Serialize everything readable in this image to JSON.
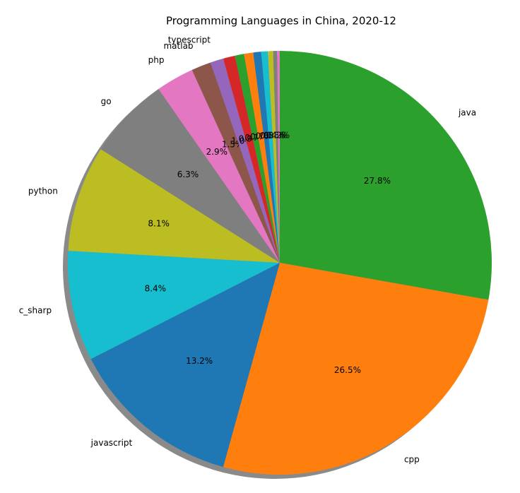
{
  "chart_data": {
    "type": "pie",
    "title": "Programming Languages in China, 2020-12",
    "categories": [
      "java",
      "cpp",
      "javascript",
      "c_sharp",
      "python",
      "go",
      "php",
      "matlab",
      "typescript",
      null,
      null,
      null,
      null,
      null,
      null,
      null,
      null
    ],
    "values": [
      27.8,
      26.5,
      13.2,
      8.4,
      8.1,
      6.3,
      2.9,
      1.5,
      1.0,
      0.9,
      0.7,
      0.7,
      0.6,
      0.5,
      0.4,
      0.3,
      0.2
    ],
    "value_labels": [
      "27.8%",
      "26.5%",
      "13.2%",
      "8.4%",
      "8.1%",
      "6.3%",
      "2.9%",
      "1.5%",
      "1.0%",
      "0.9%",
      "0.7%",
      "0.7%",
      "0.6%",
      "0.5%",
      "0.4%",
      "0.3%",
      "0.2%"
    ],
    "colors": [
      "#2ca02c",
      "#ff7f0e",
      "#1f77b4",
      "#17becf",
      "#bcbd22",
      "#7f7f7f",
      "#e377c2",
      "#8c564b",
      "#9467bd",
      "#d62728",
      "#2ca02c",
      "#ff7f0e",
      "#1f77b4",
      "#17becf",
      "#bcbd22",
      "#7f7f7f",
      "#e377c2"
    ]
  }
}
